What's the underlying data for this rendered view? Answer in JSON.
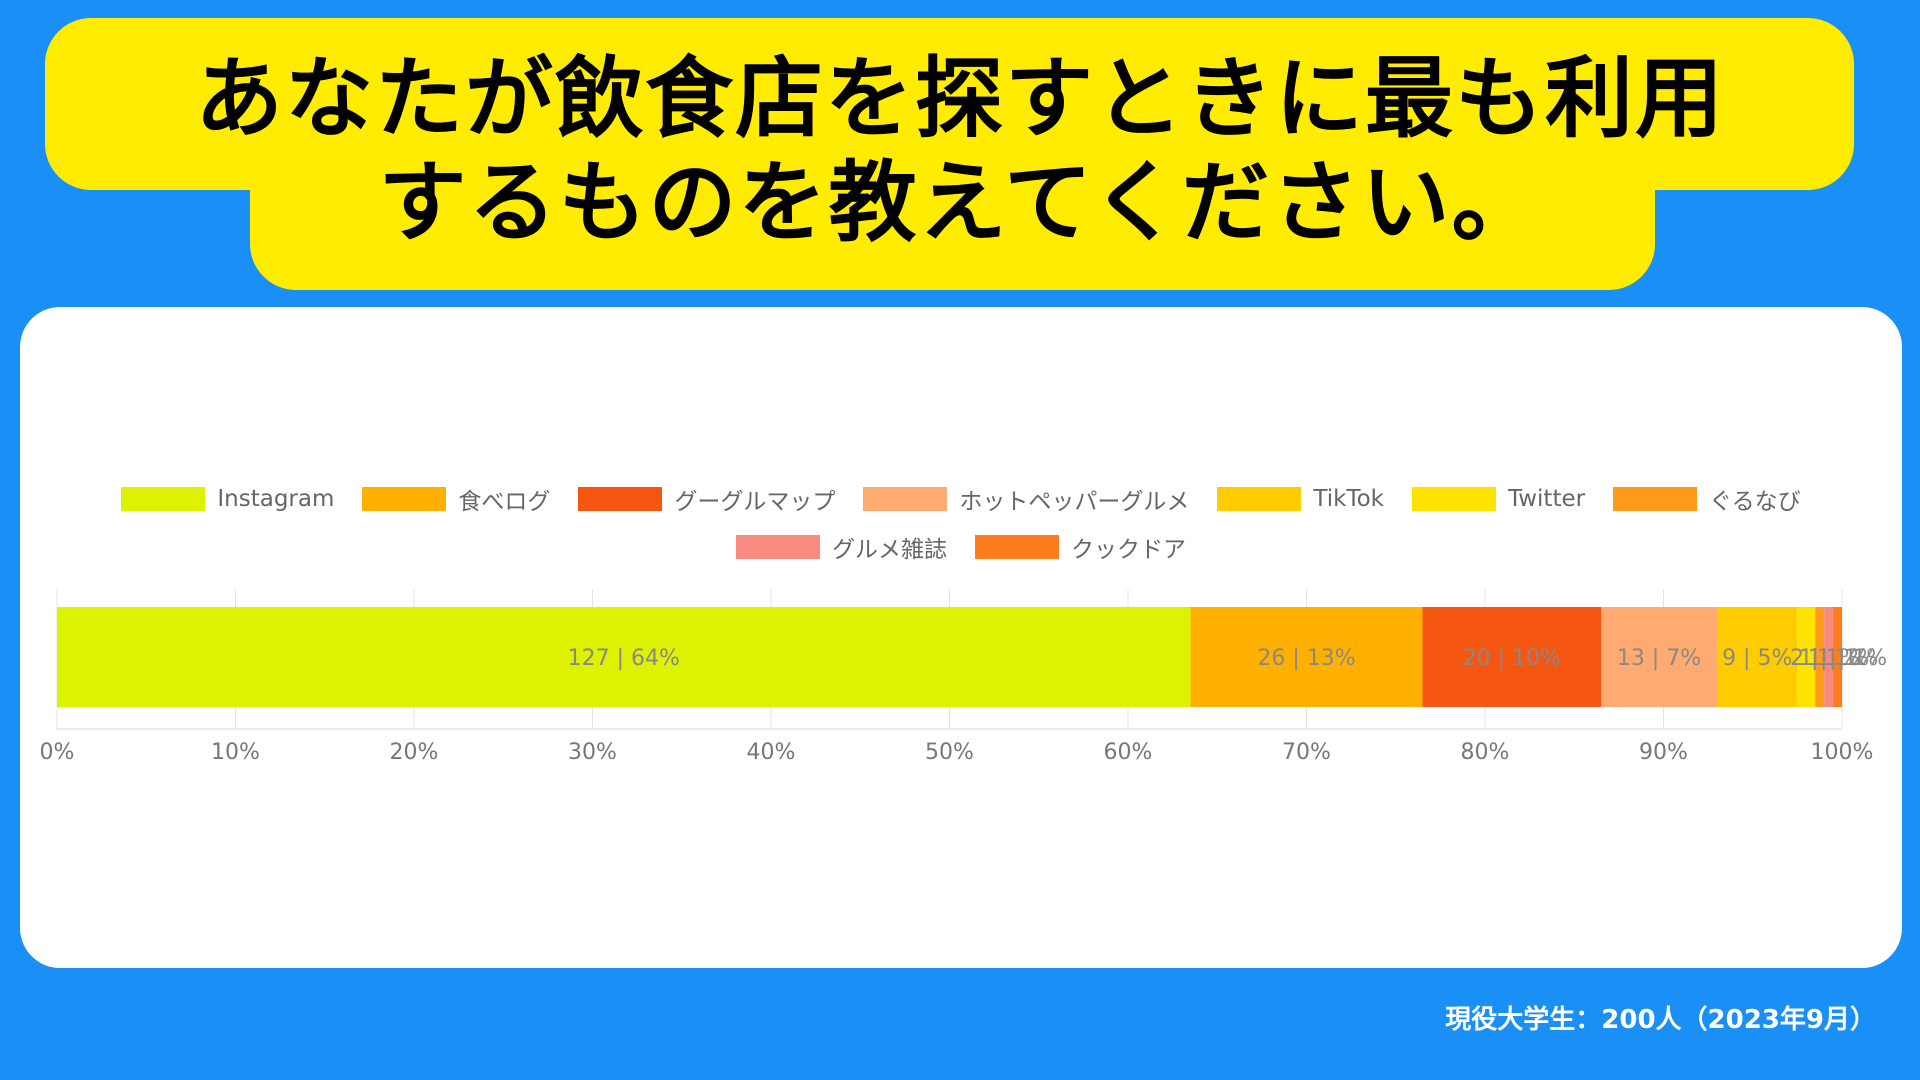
{
  "header": {
    "title_line1": "あなたが飲食店を探すときに最も利用",
    "title_line2": "するものを教えてください。"
  },
  "colors": {
    "background": "#1a8ff5",
    "banner": "#ffec00",
    "card": "#ffffff"
  },
  "chart_data": {
    "type": "bar",
    "orientation": "horizontal-stacked-100",
    "title": "",
    "xlabel": "",
    "ylabel": "",
    "xlim": [
      0,
      100
    ],
    "x_ticks": [
      "0%",
      "10%",
      "20%",
      "30%",
      "40%",
      "50%",
      "60%",
      "70%",
      "80%",
      "90%",
      "100%"
    ],
    "grid": true,
    "legend_position": "top",
    "series": [
      {
        "name": "Instagram",
        "count": 127,
        "percent": 64,
        "value": 63.5,
        "label": "127 | 64%",
        "color": "#ddf200"
      },
      {
        "name": "食べログ",
        "count": 26,
        "percent": 13,
        "value": 13.0,
        "label": "26 | 13%",
        "color": "#ffb000"
      },
      {
        "name": "グーグルマップ",
        "count": 20,
        "percent": 10,
        "value": 10.0,
        "label": "20 | 10%",
        "color": "#f55611"
      },
      {
        "name": "ホットペッパーグルメ",
        "count": 13,
        "percent": 7,
        "value": 6.5,
        "label": "13 | 7%",
        "color": "#ffaa70"
      },
      {
        "name": "TikTok",
        "count": 9,
        "percent": 5,
        "value": 4.5,
        "label": "9 | 5%",
        "color": "#ffcc00"
      },
      {
        "name": "Twitter",
        "count": 2,
        "percent": 1,
        "value": 1.0,
        "label": "2 | 1%",
        "color": "#ffe300"
      },
      {
        "name": "ぐるなび",
        "count": 1,
        "percent": 1,
        "value": 0.5,
        "label": "1 | 1%",
        "color": "#ff9a1a"
      },
      {
        "name": "グルメ雑誌",
        "count": 1,
        "percent": 1,
        "value": 0.5,
        "label": "1 | 1%",
        "color": "#f98a80"
      },
      {
        "name": "クックドア",
        "count": 1,
        "percent": 1,
        "value": 0.5,
        "label": "1 | 1%",
        "color": "#fb7d1e"
      }
    ]
  },
  "footer": {
    "note": "現役大学生：200人（2023年9月）"
  }
}
